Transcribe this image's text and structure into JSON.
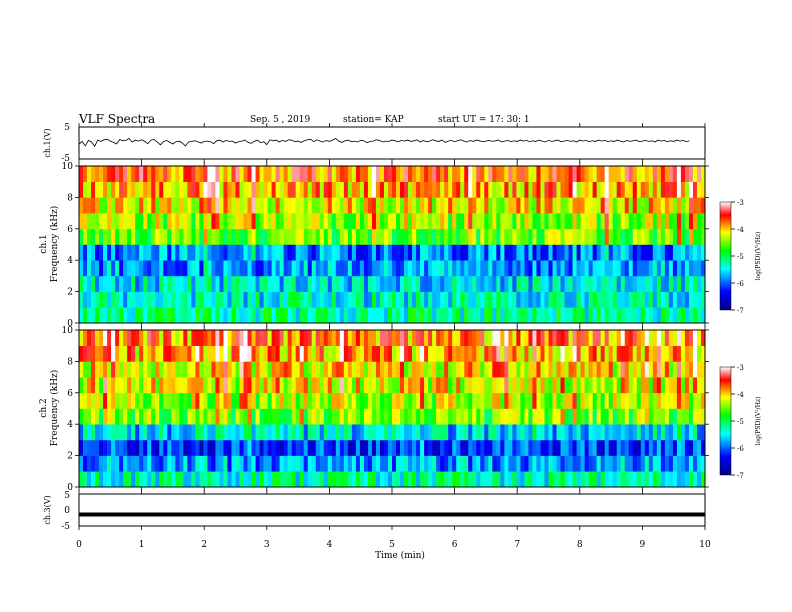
{
  "header": {
    "title": "VLF Spectra",
    "date": "Sep. 5 , 2019",
    "station": "station= KAP",
    "start": "start  UT  =   17: 30: 1"
  },
  "panels": {
    "ch1v_label": "ch.1(V)",
    "ch3v_label": "ch.3(V)",
    "ch1_label": "ch.1",
    "ch2_label": "ch.2",
    "freq_label": "Frequency (kHz)",
    "xlabel": "Time (min)",
    "colorbar_label": "log(PSD)(V²/Hz)"
  },
  "colors": {
    "colorbar_stops": [
      "#00008b",
      "#0000ff",
      "#00ffff",
      "#00ff00",
      "#ffff00",
      "#ff0000",
      "#ffffff"
    ]
  },
  "chart_data": [
    {
      "type": "line",
      "name": "ch.1 waveform",
      "ylabel": "ch.1(V)",
      "ylim": [
        -5,
        5
      ],
      "yticks": [
        5,
        -5
      ],
      "xlim": [
        0,
        10
      ],
      "x_step": 0.05,
      "values": [
        -0.4,
        0.5,
        -0.9,
        0.8,
        0.3,
        -1.0,
        0.9,
        0.5,
        1.0,
        1.2,
        0.6,
        0.2,
        -0.3,
        1.1,
        0.7,
        0.8,
        1.4,
        0.3,
        0.9,
        0.6,
        1.0,
        0.5,
        -0.2,
        0.9,
        1.1,
        0.3,
        -0.6,
        0.4,
        0.8,
        0.2,
        -0.3,
        0.4,
        0.6,
        0.0,
        -0.9,
        0.3,
        0.5,
        0.7,
        0.4,
        0.0,
        0.5,
        0.6,
        0.4,
        -0.2,
        0.7,
        0.9,
        0.3,
        0.8,
        0.5,
        0.6,
        0.0,
        0.4,
        0.6,
        0.9,
        0.2,
        -0.1,
        0.5,
        0.9,
        0.1,
        0.4,
        -0.5,
        1.0,
        0.7,
        0.9,
        0.3,
        0.8,
        0.5,
        1.0,
        0.9,
        0.4,
        0.6,
        0.2,
        0.7,
        1.0,
        1.2,
        0.4,
        1.0,
        0.6,
        0.3,
        0.8,
        0.5,
        0.9,
        1.4,
        0.6,
        0.2,
        0.7,
        0.9,
        0.4,
        0.6,
        0.3,
        0.8,
        0.7,
        0.1,
        0.5,
        0.6,
        1.0,
        0.8,
        0.3,
        0.6,
        0.5,
        0.9,
        0.7,
        0.4,
        0.8,
        0.6,
        0.9,
        0.5,
        0.7,
        1.0,
        0.3,
        0.8,
        0.4,
        0.6,
        1.0,
        0.7,
        0.5,
        0.9,
        0.2,
        0.6,
        0.8,
        0.4,
        0.7,
        1.0,
        0.6,
        0.3,
        0.8,
        0.5,
        0.9,
        0.7,
        0.4,
        0.6,
        0.8,
        0.5,
        0.7,
        0.9,
        0.3,
        0.6,
        0.8,
        0.4,
        0.7,
        0.5,
        0.9,
        0.6,
        0.8,
        0.4,
        0.7,
        0.5,
        0.9,
        0.6,
        0.3,
        0.8,
        0.5,
        0.7,
        0.9,
        0.4,
        0.6,
        0.8,
        0.5,
        0.7,
        0.3,
        0.9,
        0.6,
        0.8,
        0.4,
        0.7,
        0.5,
        0.9,
        0.6,
        0.8,
        0.4,
        0.7,
        0.5,
        0.9,
        0.6,
        0.3,
        0.8,
        0.5,
        0.7,
        0.9,
        0.4,
        0.6,
        0.8,
        0.5,
        0.7,
        0.3,
        0.9,
        0.6,
        0.8,
        0.4,
        0.7,
        0.5,
        0.9,
        0.6,
        0.8,
        0.4,
        0.7
      ]
    },
    {
      "type": "heatmap",
      "name": "ch.1 spectrogram",
      "xlabel": "Time (min)",
      "ylabel": "Frequency (kHz)",
      "xlim": [
        0,
        10
      ],
      "ylim": [
        0,
        10
      ],
      "yticks": [
        0,
        2,
        4,
        6,
        8,
        10
      ],
      "colorbar": {
        "label": "log(PSD)(V²/Hz)",
        "min": -7,
        "max": -3,
        "ticks": [
          -3,
          -4,
          -5,
          -6,
          -7
        ]
      },
      "freq_kHz": [
        0.5,
        1.5,
        2.5,
        3.5,
        4.5,
        5.5,
        6.5,
        7.5,
        8.5,
        9.5
      ],
      "band_log_psd": [
        -5.2,
        -5.4,
        -5.5,
        -5.8,
        -5.9,
        -4.6,
        -4.4,
        -4.1,
        -3.9,
        -3.7
      ]
    },
    {
      "type": "heatmap",
      "name": "ch.2 spectrogram",
      "xlabel": "Time (min)",
      "ylabel": "Frequency (kHz)",
      "xlim": [
        0,
        10
      ],
      "ylim": [
        0,
        10
      ],
      "yticks": [
        0,
        2,
        4,
        6,
        8,
        10
      ],
      "colorbar": {
        "label": "log(PSD)(V²/Hz)",
        "min": -7,
        "max": -3,
        "ticks": [
          -3,
          -4,
          -5,
          -6,
          -7
        ]
      },
      "freq_kHz": [
        0.5,
        1.5,
        2.5,
        3.5,
        4.5,
        5.5,
        6.5,
        7.5,
        8.5,
        9.5
      ],
      "band_log_psd": [
        -5.3,
        -5.8,
        -6.2,
        -5.6,
        -4.6,
        -4.4,
        -4.2,
        -4.1,
        -3.9,
        -3.8
      ]
    },
    {
      "type": "line",
      "name": "ch.3 waveform",
      "ylabel": "ch.3(V)",
      "ylim": [
        -5,
        5
      ],
      "yticks": [
        5,
        0,
        -5
      ],
      "xlim": [
        0,
        10
      ],
      "xticks": [
        0,
        1,
        2,
        3,
        4,
        5,
        6,
        7,
        8,
        9,
        10
      ],
      "x_step": 1,
      "values": [
        -1.4,
        -1.4,
        -1.4,
        -1.4,
        -1.4,
        -1.4,
        -1.4,
        -1.4,
        -1.4,
        -1.4,
        -1.4
      ]
    }
  ]
}
